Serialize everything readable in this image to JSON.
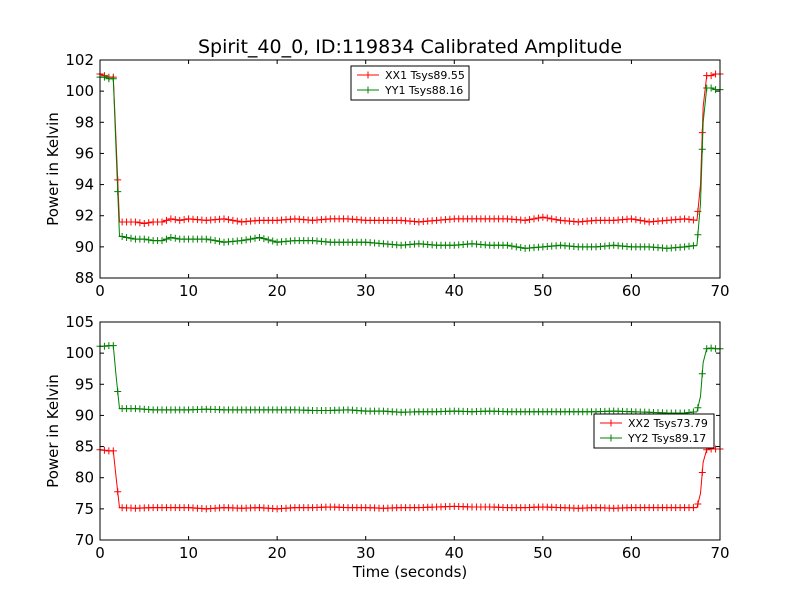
{
  "figure": {
    "title": "Spirit_40_0, ID:119834 Calibrated Amplitude"
  },
  "chart_data": [
    {
      "type": "line",
      "title": "Spirit_40_0, ID:119834 Calibrated Amplitude",
      "xlabel": "",
      "ylabel": "Power in Kelvin",
      "xlim": [
        0,
        70
      ],
      "ylim": [
        88,
        102
      ],
      "xticks": [
        0,
        10,
        20,
        30,
        40,
        50,
        60,
        70
      ],
      "yticks": [
        88,
        90,
        92,
        94,
        96,
        98,
        100,
        102
      ],
      "grid": false,
      "legend": "top-center",
      "marker": "+",
      "series": [
        {
          "name": "XX1 Tsys89.55",
          "color": "#ff0000",
          "points": [
            [
              0.0,
              101.1
            ],
            [
              0.5,
              101.0
            ],
            [
              1.0,
              100.9
            ],
            [
              1.5,
              100.9
            ],
            [
              1.8,
              97.0
            ],
            [
              2.2,
              91.6
            ],
            [
              3,
              91.6
            ],
            [
              4,
              91.6
            ],
            [
              5,
              91.5
            ],
            [
              6,
              91.6
            ],
            [
              7,
              91.6
            ],
            [
              8,
              91.8
            ],
            [
              9,
              91.7
            ],
            [
              10,
              91.8
            ],
            [
              12,
              91.7
            ],
            [
              14,
              91.8
            ],
            [
              16,
              91.6
            ],
            [
              18,
              91.7
            ],
            [
              20,
              91.7
            ],
            [
              22,
              91.8
            ],
            [
              24,
              91.7
            ],
            [
              26,
              91.8
            ],
            [
              28,
              91.8
            ],
            [
              30,
              91.7
            ],
            [
              32,
              91.7
            ],
            [
              34,
              91.7
            ],
            [
              36,
              91.6
            ],
            [
              38,
              91.7
            ],
            [
              40,
              91.8
            ],
            [
              42,
              91.8
            ],
            [
              44,
              91.8
            ],
            [
              46,
              91.8
            ],
            [
              48,
              91.7
            ],
            [
              50,
              91.9
            ],
            [
              52,
              91.7
            ],
            [
              54,
              91.6
            ],
            [
              56,
              91.7
            ],
            [
              58,
              91.7
            ],
            [
              60,
              91.8
            ],
            [
              62,
              91.6
            ],
            [
              64,
              91.7
            ],
            [
              66,
              91.8
            ],
            [
              67.4,
              91.7
            ],
            [
              67.8,
              94.0
            ],
            [
              68.1,
              99.0
            ],
            [
              68.5,
              101.0
            ],
            [
              69.0,
              101.0
            ],
            [
              69.5,
              101.1
            ],
            [
              70.0,
              101.1
            ]
          ]
        },
        {
          "name": "YY1 Tsys88.16",
          "color": "#008000",
          "points": [
            [
              0.0,
              100.9
            ],
            [
              0.5,
              100.9
            ],
            [
              1.0,
              100.8
            ],
            [
              1.5,
              100.8
            ],
            [
              1.8,
              96.4
            ],
            [
              2.2,
              90.7
            ],
            [
              3,
              90.6
            ],
            [
              4,
              90.5
            ],
            [
              5,
              90.5
            ],
            [
              6,
              90.4
            ],
            [
              7,
              90.4
            ],
            [
              8,
              90.6
            ],
            [
              9,
              90.5
            ],
            [
              10,
              90.5
            ],
            [
              12,
              90.5
            ],
            [
              14,
              90.3
            ],
            [
              16,
              90.4
            ],
            [
              18,
              90.6
            ],
            [
              20,
              90.3
            ],
            [
              22,
              90.4
            ],
            [
              24,
              90.4
            ],
            [
              26,
              90.3
            ],
            [
              28,
              90.3
            ],
            [
              30,
              90.3
            ],
            [
              32,
              90.2
            ],
            [
              34,
              90.1
            ],
            [
              36,
              90.2
            ],
            [
              38,
              90.1
            ],
            [
              40,
              90.1
            ],
            [
              42,
              90.2
            ],
            [
              44,
              90.1
            ],
            [
              46,
              90.1
            ],
            [
              48,
              89.9
            ],
            [
              50,
              90.0
            ],
            [
              52,
              90.1
            ],
            [
              54,
              90.0
            ],
            [
              56,
              90.0
            ],
            [
              58,
              90.1
            ],
            [
              60,
              90.0
            ],
            [
              62,
              90.0
            ],
            [
              64,
              89.9
            ],
            [
              66,
              90.0
            ],
            [
              67.4,
              90.1
            ],
            [
              67.8,
              92.8
            ],
            [
              68.1,
              98.0
            ],
            [
              68.5,
              100.2
            ],
            [
              69.0,
              100.2
            ],
            [
              69.5,
              100.1
            ],
            [
              70.0,
              100.1
            ]
          ]
        }
      ]
    },
    {
      "type": "line",
      "title": "",
      "xlabel": "Time (seconds)",
      "ylabel": "Power in Kelvin",
      "xlim": [
        0,
        70
      ],
      "ylim": [
        70,
        105
      ],
      "xticks": [
        0,
        10,
        20,
        30,
        40,
        50,
        60,
        70
      ],
      "yticks": [
        70,
        75,
        80,
        85,
        90,
        95,
        100,
        105
      ],
      "grid": false,
      "legend": "center-right",
      "marker": "+",
      "series": [
        {
          "name": "XX2 Tsys73.79",
          "color": "#ff0000",
          "points": [
            [
              0.0,
              84.5
            ],
            [
              0.5,
              84.4
            ],
            [
              1.0,
              84.3
            ],
            [
              1.5,
              84.3
            ],
            [
              1.8,
              80.3
            ],
            [
              2.2,
              75.2
            ],
            [
              4,
              75.1
            ],
            [
              6,
              75.2
            ],
            [
              8,
              75.2
            ],
            [
              10,
              75.2
            ],
            [
              12,
              75.0
            ],
            [
              14,
              75.2
            ],
            [
              16,
              75.1
            ],
            [
              18,
              75.2
            ],
            [
              20,
              75.0
            ],
            [
              22,
              75.2
            ],
            [
              24,
              75.2
            ],
            [
              26,
              75.3
            ],
            [
              28,
              75.2
            ],
            [
              30,
              75.2
            ],
            [
              32,
              75.1
            ],
            [
              34,
              75.2
            ],
            [
              36,
              75.2
            ],
            [
              38,
              75.3
            ],
            [
              40,
              75.4
            ],
            [
              42,
              75.3
            ],
            [
              44,
              75.3
            ],
            [
              46,
              75.2
            ],
            [
              48,
              75.2
            ],
            [
              50,
              75.3
            ],
            [
              52,
              75.2
            ],
            [
              54,
              75.1
            ],
            [
              56,
              75.2
            ],
            [
              58,
              75.1
            ],
            [
              60,
              75.2
            ],
            [
              62,
              75.2
            ],
            [
              64,
              75.2
            ],
            [
              66,
              75.2
            ],
            [
              67.4,
              75.2
            ],
            [
              67.8,
              77.5
            ],
            [
              68.1,
              82.5
            ],
            [
              68.5,
              84.5
            ],
            [
              69.0,
              84.6
            ],
            [
              69.5,
              84.6
            ],
            [
              70.0,
              84.6
            ]
          ]
        },
        {
          "name": "YY2 Tsys89.17",
          "color": "#008000",
          "points": [
            [
              0.0,
              101.1
            ],
            [
              0.5,
              101.1
            ],
            [
              1.0,
              101.2
            ],
            [
              1.5,
              101.2
            ],
            [
              1.8,
              96.6
            ],
            [
              2.2,
              91.1
            ],
            [
              4,
              91.1
            ],
            [
              6,
              90.9
            ],
            [
              8,
              90.9
            ],
            [
              10,
              90.9
            ],
            [
              12,
              91.0
            ],
            [
              14,
              90.9
            ],
            [
              16,
              90.9
            ],
            [
              18,
              90.9
            ],
            [
              20,
              90.9
            ],
            [
              22,
              90.9
            ],
            [
              24,
              90.8
            ],
            [
              26,
              90.8
            ],
            [
              28,
              90.9
            ],
            [
              30,
              90.7
            ],
            [
              32,
              90.7
            ],
            [
              34,
              90.5
            ],
            [
              36,
              90.6
            ],
            [
              38,
              90.6
            ],
            [
              40,
              90.7
            ],
            [
              42,
              90.6
            ],
            [
              44,
              90.7
            ],
            [
              46,
              90.6
            ],
            [
              48,
              90.6
            ],
            [
              50,
              90.6
            ],
            [
              52,
              90.6
            ],
            [
              54,
              90.6
            ],
            [
              56,
              90.6
            ],
            [
              58,
              90.7
            ],
            [
              60,
              90.6
            ],
            [
              62,
              90.5
            ],
            [
              64,
              90.4
            ],
            [
              66,
              90.4
            ],
            [
              67.4,
              90.6
            ],
            [
              67.8,
              93.1
            ],
            [
              68.1,
              98.5
            ],
            [
              68.5,
              100.7
            ],
            [
              69.0,
              100.8
            ],
            [
              69.5,
              100.7
            ],
            [
              70.0,
              100.7
            ]
          ]
        }
      ]
    }
  ]
}
